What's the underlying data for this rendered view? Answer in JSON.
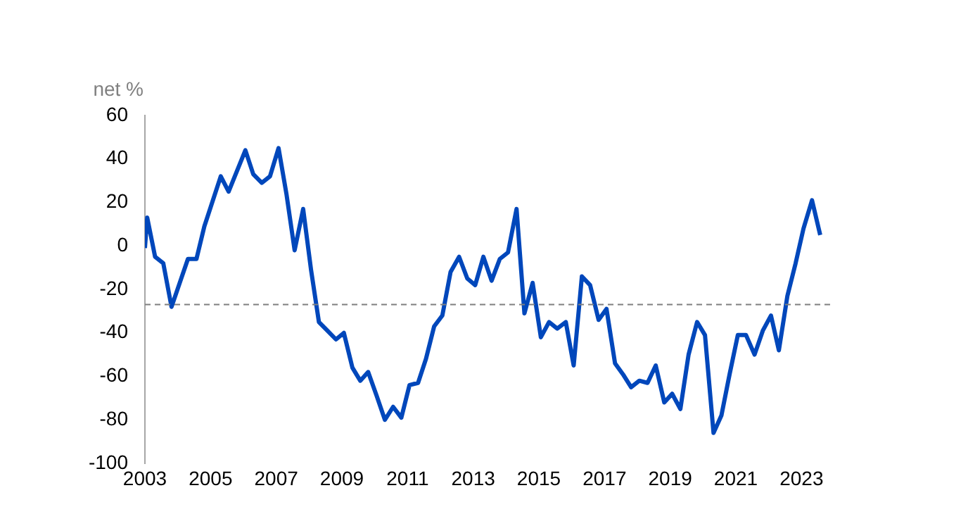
{
  "chart_data": {
    "type": "line",
    "ylabel": "net %",
    "x": [
      2003.0,
      2003.07,
      2003.31,
      2003.56,
      2003.81,
      2004.31,
      2004.57,
      2004.81,
      2005.31,
      2005.55,
      2006.06,
      2006.3,
      2006.56,
      2006.81,
      2007.07,
      2007.31,
      2007.56,
      2007.82,
      2008.06,
      2008.3,
      2008.56,
      2008.82,
      2009.06,
      2009.32,
      2009.56,
      2009.8,
      2010.06,
      2010.31,
      2010.56,
      2010.81,
      2011.06,
      2011.32,
      2011.56,
      2011.81,
      2012.06,
      2012.31,
      2012.57,
      2012.82,
      2013.06,
      2013.31,
      2013.56,
      2013.81,
      2014.06,
      2014.32,
      2014.56,
      2014.81,
      2015.06,
      2015.31,
      2015.56,
      2015.82,
      2016.06,
      2016.31,
      2016.56,
      2016.82,
      2017.06,
      2017.32,
      2017.56,
      2017.81,
      2018.06,
      2018.31,
      2018.56,
      2018.82,
      2019.06,
      2019.31,
      2019.56,
      2019.82,
      2020.06,
      2020.32,
      2020.56,
      2020.81,
      2021.06,
      2021.31,
      2021.57,
      2021.82,
      2022.07,
      2022.31,
      2022.57,
      2022.82,
      2023.06,
      2023.32,
      2023.57
    ],
    "series": [
      {
        "color": "#0047bb",
        "values": [
          -1,
          13,
          -5,
          -8,
          -28,
          -6,
          -6,
          9,
          32,
          25,
          44,
          33,
          29,
          32,
          45,
          24,
          -2,
          17,
          -11,
          -35,
          -39,
          -43,
          -40,
          -56,
          -62,
          -58,
          -69,
          -80,
          -74,
          -79,
          -64,
          -63,
          -52,
          -37,
          -32,
          -12,
          -5,
          -15,
          -18,
          -5,
          -16,
          -6,
          -3,
          17,
          -31,
          -17,
          -42,
          -35,
          -38,
          -35,
          -55,
          -14,
          -18,
          -34,
          -29,
          -54,
          -59,
          -65,
          -62,
          -63,
          -55,
          -72,
          -68,
          -75,
          -50,
          -35,
          -41,
          -86,
          -78,
          -59,
          -41,
          -41,
          -50,
          -39,
          -32,
          -48,
          -23,
          -8,
          8,
          21,
          5
        ]
      }
    ],
    "xlim": [
      2003,
      2024
    ],
    "xticks": [
      2003,
      2005,
      2007,
      2009,
      2011,
      2013,
      2015,
      2017,
      2019,
      2021,
      2023
    ],
    "ylim": [
      -100,
      60
    ],
    "yticks": [
      -100,
      -80,
      -60,
      -40,
      -20,
      0,
      20,
      40,
      60
    ],
    "grid": false,
    "marker": "none",
    "ref_lines": [
      {
        "axis": "y",
        "value": -27,
        "color": "#7f7f7f",
        "line_style": "dashed"
      }
    ]
  }
}
